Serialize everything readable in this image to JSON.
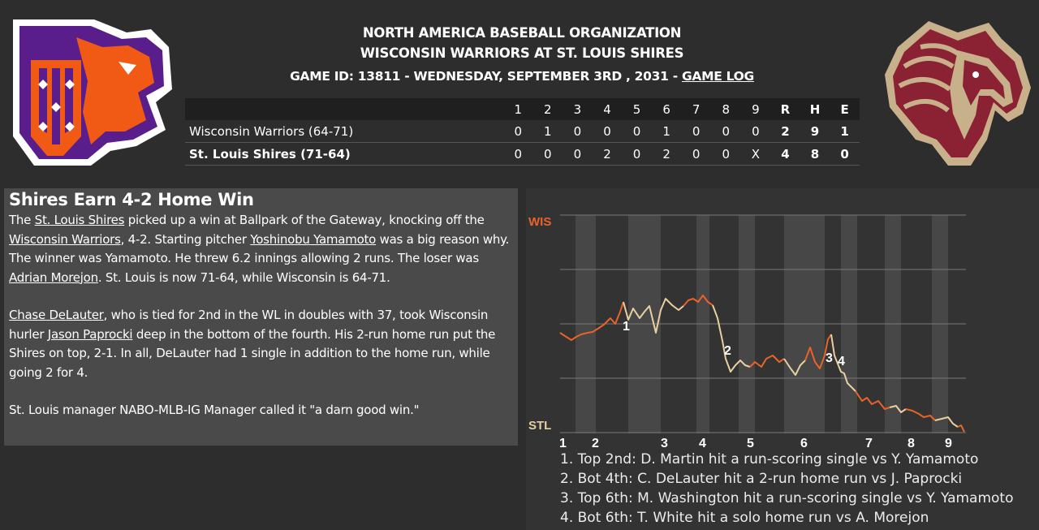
{
  "header": {
    "organization": "NORTH AMERICA BASEBALL ORGANIZATION",
    "matchup": "WISCONSIN WARRIORS AT ST. LOUIS SHIRES",
    "game_info": "GAME ID: 13811 - WEDNESDAY, SEPTEMBER 3RD , 2031 - ",
    "game_log_link": "GAME LOG"
  },
  "logos": {
    "away": {
      "icon": "warriors-eagle-logo-icon",
      "colors": [
        "#5a1e8c",
        "#f05a14",
        "#ffffff"
      ]
    },
    "home": {
      "icon": "shires-horse-logo-icon",
      "colors": [
        "#8a2233",
        "#c8b08a",
        "#ffffff"
      ]
    }
  },
  "linescore": {
    "columns": [
      "1",
      "2",
      "3",
      "4",
      "5",
      "6",
      "7",
      "8",
      "9",
      "R",
      "H",
      "E"
    ],
    "rows": [
      {
        "team": "Wisconsin Warriors (64-71)",
        "innings": [
          "0",
          "1",
          "0",
          "0",
          "0",
          "1",
          "0",
          "0",
          "0"
        ],
        "r": "2",
        "h": "9",
        "e": "1"
      },
      {
        "team": "St. Louis Shires (71-64)",
        "innings": [
          "0",
          "0",
          "0",
          "2",
          "0",
          "2",
          "0",
          "0",
          "X"
        ],
        "r": "4",
        "h": "8",
        "e": "0"
      }
    ]
  },
  "story": {
    "headline": "Shires Earn 4-2 Home Win",
    "p1": {
      "t1": "The ",
      "link1": "St. Louis Shires",
      "t2": " picked up a win at Ballpark of the Gateway, knocking off the ",
      "link2": "Wisconsin Warriors",
      "t3": ", 4-2. Starting pitcher ",
      "link3": "Yoshinobu Yamamoto",
      "t4": " was a big reason why. The winner was Yamamoto. He threw 6.2 innings allowing 2 runs. The loser was ",
      "link4": "Adrian Morejon",
      "t5": ". St. Louis is now 71-64, while Wisconsin is 64-71."
    },
    "p2": {
      "link1": "Chase DeLauter",
      "t1": ", who is tied for 2nd in the WL in doubles with 37, took Wisconsin hurler ",
      "link2": "Jason Paprocki",
      "t2": " deep in the bottom of the fourth. His 2-run home run put the Shires on top, 2-1. In all, DeLauter had 1 single in addition to the home run, while going 2 for 4."
    },
    "p3": "St. Louis manager NABO-MLB-IG Manager called it \"a darn good win.\""
  },
  "win_probability": {
    "top_label": "WIS",
    "bottom_label": "STL",
    "top_color": "#e8632a",
    "bottom_color": "#e8cfa0",
    "inning_labels": [
      "1",
      "2",
      "3",
      "4",
      "5",
      "6",
      "7",
      "8",
      "9"
    ],
    "markers": [
      "1",
      "2",
      "3",
      "4"
    ],
    "events": [
      "1. Top 2nd: D. Martin hit a run-scoring single vs Y. Yamamoto",
      "2. Bot 4th: C. DeLauter hit a 2-run home run vs J. Paprocki",
      "3. Top 6th: M. Washington hit a run-scoring single vs Y. Yamamoto",
      "4. Bot 6th: T. White hit a solo home run vs A. Morejon"
    ]
  }
}
